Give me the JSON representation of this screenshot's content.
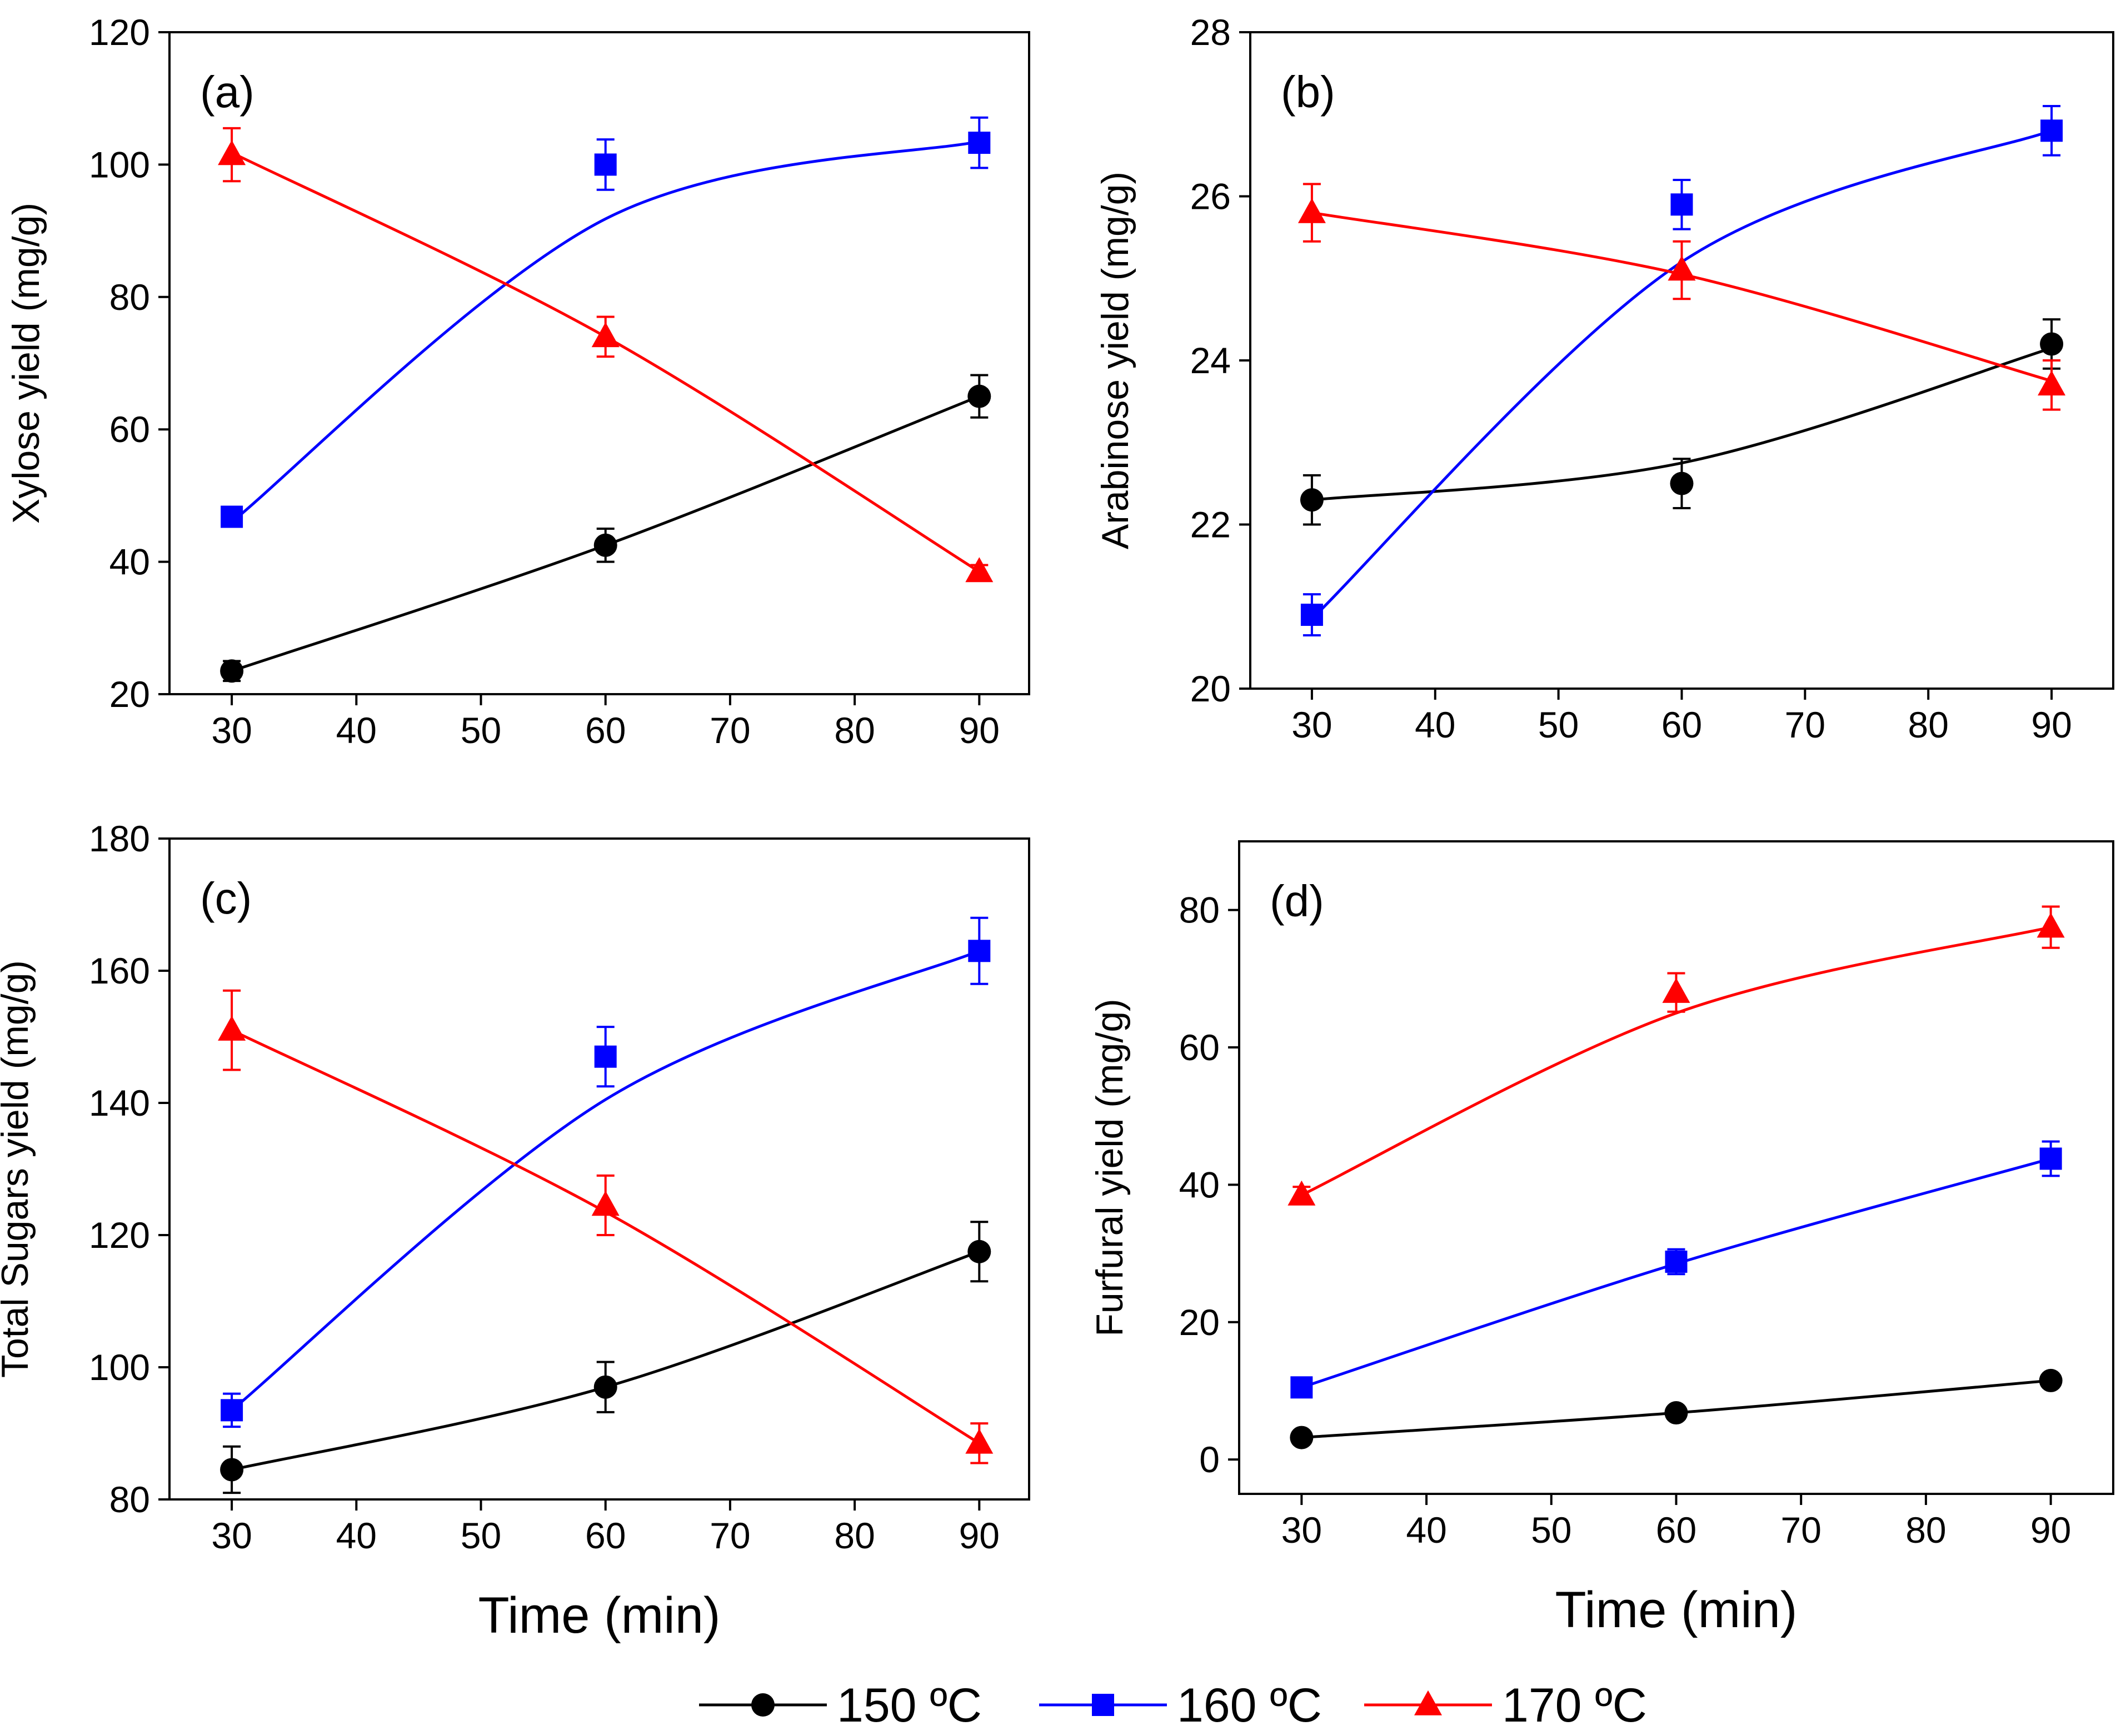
{
  "chart_data": [
    {
      "type": "line",
      "panel_label": "(a)",
      "xlabel": "",
      "ylabel": "Xylose yield (mg/g)",
      "xlim": [
        25,
        94
      ],
      "ylim": [
        20,
        120
      ],
      "xticks": [
        30,
        40,
        50,
        60,
        70,
        80,
        90
      ],
      "yticks": [
        20,
        40,
        60,
        80,
        100,
        120
      ],
      "x": [
        30,
        60,
        90
      ],
      "series": [
        {
          "name": "150 °C",
          "color": "#000000",
          "marker": "circle",
          "values": [
            23.5,
            42.5,
            65.0
          ],
          "errors": [
            1.5,
            2.5,
            3.2
          ],
          "curve": [
            23.5,
            42.5,
            65.0
          ]
        },
        {
          "name": "160 °C",
          "color": "#0000ff",
          "marker": "square",
          "values": [
            46.8,
            100.0,
            103.3
          ],
          "errors": [
            1.5,
            3.8,
            3.8
          ],
          "curve": [
            46.0,
            91.8,
            103.5
          ]
        },
        {
          "name": "170 °C",
          "color": "#ff0000",
          "marker": "triangle",
          "values": [
            101.5,
            74.0,
            38.5
          ],
          "errors": [
            4.0,
            3.0,
            1.0
          ],
          "curve": [
            101.8,
            74.0,
            38.5
          ]
        }
      ]
    },
    {
      "type": "line",
      "panel_label": "(b)",
      "xlabel": "",
      "ylabel": "Arabinose yield (mg/g)",
      "xlim": [
        25,
        95
      ],
      "ylim": [
        20,
        28
      ],
      "xticks": [
        30,
        40,
        50,
        60,
        70,
        80,
        90
      ],
      "yticks": [
        20,
        22,
        24,
        26,
        28
      ],
      "x": [
        30,
        60,
        90
      ],
      "series": [
        {
          "name": "150 °C",
          "color": "#000000",
          "marker": "circle",
          "values": [
            22.3,
            22.5,
            24.2
          ],
          "errors": [
            0.3,
            0.3,
            0.3
          ],
          "curve": [
            22.3,
            22.75,
            24.15
          ]
        },
        {
          "name": "160 °C",
          "color": "#0000ff",
          "marker": "square",
          "values": [
            20.9,
            25.9,
            26.8
          ],
          "errors": [
            0.25,
            0.3,
            0.3
          ],
          "curve": [
            20.85,
            25.2,
            26.8
          ]
        },
        {
          "name": "170 °C",
          "color": "#ff0000",
          "marker": "triangle",
          "values": [
            25.8,
            25.1,
            23.7
          ],
          "errors": [
            0.35,
            0.35,
            0.3
          ],
          "curve": [
            25.8,
            25.05,
            23.75
          ]
        }
      ]
    },
    {
      "type": "line",
      "panel_label": "(c)",
      "xlabel": "Time (min)",
      "ylabel": "Total Sugars yield (mg/g)",
      "xlim": [
        25,
        94
      ],
      "ylim": [
        80,
        180
      ],
      "xticks": [
        30,
        40,
        50,
        60,
        70,
        80,
        90
      ],
      "yticks": [
        80,
        100,
        120,
        140,
        160,
        180
      ],
      "x": [
        30,
        60,
        90
      ],
      "series": [
        {
          "name": "150 °C",
          "color": "#000000",
          "marker": "circle",
          "values": [
            84.5,
            97.0,
            117.5
          ],
          "errors": [
            3.5,
            3.8,
            4.5
          ],
          "curve": [
            84.5,
            97.0,
            117.5
          ]
        },
        {
          "name": "160 °C",
          "color": "#0000ff",
          "marker": "square",
          "values": [
            93.5,
            147.0,
            163.0
          ],
          "errors": [
            2.5,
            4.5,
            5.0
          ],
          "curve": [
            93.5,
            140.5,
            163.0
          ]
        },
        {
          "name": "170 °C",
          "color": "#ff0000",
          "marker": "triangle",
          "values": [
            151.0,
            124.5,
            88.5
          ],
          "errors": [
            6.0,
            4.5,
            3.0
          ],
          "curve": [
            151.0,
            123.5,
            88.5
          ]
        }
      ]
    },
    {
      "type": "line",
      "panel_label": "(d)",
      "xlabel": "Time (min)",
      "ylabel": "Furfural yield (mg/g)",
      "xlim": [
        25,
        95
      ],
      "ylim": [
        -5,
        90
      ],
      "xticks": [
        30,
        40,
        50,
        60,
        70,
        80,
        90
      ],
      "yticks": [
        0,
        20,
        40,
        60,
        80
      ],
      "x": [
        30,
        60,
        90
      ],
      "series": [
        {
          "name": "150 °C",
          "color": "#000000",
          "marker": "circle",
          "values": [
            3.2,
            6.8,
            11.5
          ],
          "errors": [
            0.8,
            0.8,
            0.8
          ],
          "curve": [
            3.2,
            6.8,
            11.5
          ]
        },
        {
          "name": "160 °C",
          "color": "#0000ff",
          "marker": "square",
          "values": [
            10.5,
            28.8,
            43.8
          ],
          "errors": [
            1.0,
            1.8,
            2.5
          ],
          "curve": [
            10.5,
            28.5,
            43.8
          ]
        },
        {
          "name": "170 °C",
          "color": "#ff0000",
          "marker": "triangle",
          "values": [
            38.5,
            68.0,
            77.5
          ],
          "errors": [
            1.2,
            2.8,
            3.0
          ],
          "curve": [
            38.5,
            65.0,
            77.5
          ]
        }
      ]
    }
  ],
  "legend": {
    "placement": "bottom-center",
    "items": [
      {
        "label": "150 ºC",
        "color": "#000000",
        "marker": "circle"
      },
      {
        "label": "160 ºC",
        "color": "#0000ff",
        "marker": "square"
      },
      {
        "label": "170 ºC",
        "color": "#ff0000",
        "marker": "triangle"
      }
    ]
  }
}
